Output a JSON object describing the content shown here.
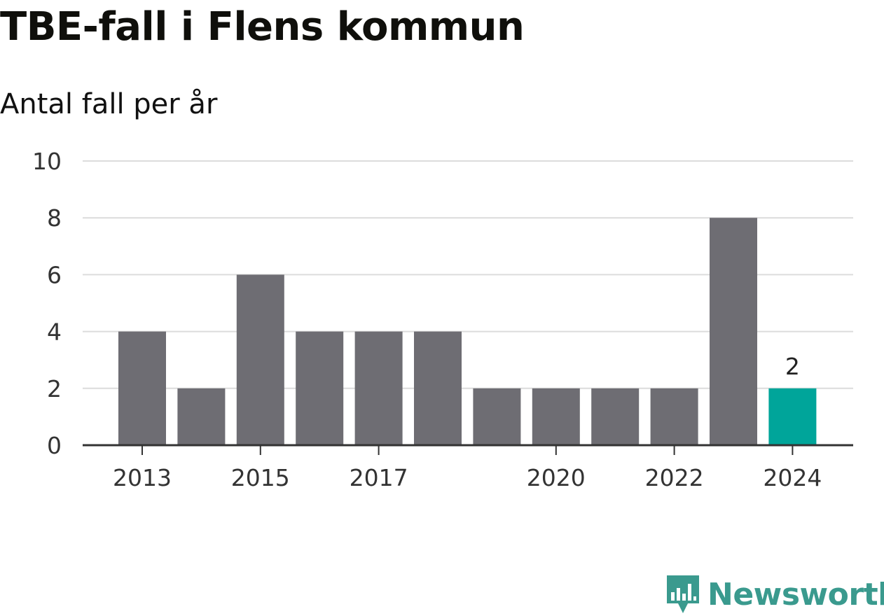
{
  "header": {
    "title": "TBE-fall i Flens kommun",
    "subtitle": "Antal fall per år"
  },
  "chart_data": {
    "type": "bar",
    "categories": [
      "2013",
      "2014",
      "2015",
      "2016",
      "2017",
      "2018",
      "2019",
      "2020",
      "2021",
      "2022",
      "2023",
      "2024"
    ],
    "values": [
      4,
      2,
      6,
      4,
      4,
      4,
      2,
      2,
      2,
      2,
      8,
      2
    ],
    "x_tick_labels": [
      "2013",
      "2015",
      "2017",
      "2020",
      "2022",
      "2024"
    ],
    "y_ticks": [
      0,
      2,
      4,
      6,
      8,
      10
    ],
    "ylim": [
      0,
      10
    ],
    "grid": true,
    "data_labels": [
      {
        "category": "2024",
        "text": "2"
      }
    ],
    "highlight_category": "2024",
    "colors": {
      "bar": "#6e6d73",
      "highlight": "#00a59a",
      "grid": "#dcdcdc",
      "axis": "#333333"
    }
  },
  "footer": {
    "brand": "Newsworthy",
    "logo_icon": "newsworthy-logo-icon",
    "brand_color": "#3a9a8e"
  }
}
